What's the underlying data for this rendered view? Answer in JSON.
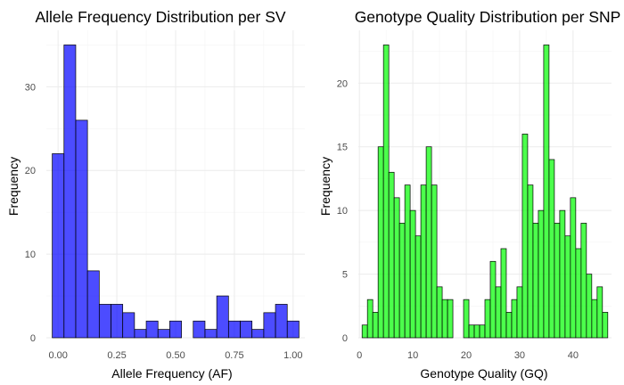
{
  "chart_data": [
    {
      "type": "bar",
      "title": "Allele Frequency Distribution per SV",
      "xlabel": "Allele Frequency (AF)",
      "ylabel": "Frequency",
      "bar_color": "#0000ff",
      "bar_opacity": 0.7,
      "bin_width": 0.05,
      "x": [
        0.0,
        0.05,
        0.1,
        0.15,
        0.2,
        0.25,
        0.3,
        0.35,
        0.4,
        0.45,
        0.5,
        0.55,
        0.6,
        0.65,
        0.7,
        0.75,
        0.8,
        0.85,
        0.9,
        0.95,
        1.0
      ],
      "values": [
        22,
        35,
        26,
        8,
        4,
        4,
        3,
        1,
        2,
        1,
        2,
        0,
        2,
        1,
        5,
        2,
        2,
        1,
        3,
        4,
        2
      ],
      "xlim": [
        -0.05,
        1.05
      ],
      "ylim": [
        0,
        36.75
      ],
      "xticks": [
        0.0,
        0.25,
        0.5,
        0.75,
        1.0
      ],
      "xtick_labels": [
        "0.00",
        "0.25",
        "0.50",
        "0.75",
        "1.00"
      ],
      "yticks": [
        0,
        10,
        20,
        30
      ],
      "ytick_labels": [
        "0",
        "10",
        "20",
        "30"
      ],
      "grid": true
    },
    {
      "type": "bar",
      "title": "Genotype Quality Distribution per SNP",
      "xlabel": "Genotype Quality (GQ)",
      "ylabel": "Frequency",
      "bar_color": "#00ff00",
      "bar_opacity": 0.7,
      "bin_width": 1,
      "x": [
        1,
        2,
        3,
        4,
        5,
        6,
        7,
        8,
        9,
        10,
        11,
        12,
        13,
        14,
        15,
        16,
        17,
        18,
        19,
        20,
        21,
        22,
        23,
        24,
        25,
        26,
        27,
        28,
        29,
        30,
        31,
        32,
        33,
        34,
        35,
        36,
        37,
        38,
        39,
        40,
        41,
        42,
        43,
        44,
        45,
        46
      ],
      "values": [
        1,
        3,
        2,
        15,
        23,
        13,
        11,
        9,
        12,
        10,
        8,
        12,
        15,
        12,
        4,
        3,
        3,
        0,
        0,
        3,
        1,
        1,
        1,
        3,
        6,
        4,
        7,
        2,
        3,
        4,
        16,
        12,
        9,
        10,
        23,
        14,
        9,
        10,
        8,
        11,
        7,
        9,
        5,
        3,
        4,
        2
      ],
      "xlim": [
        -0.2,
        47.2
      ],
      "ylim": [
        0,
        24.15
      ],
      "xticks": [
        0,
        10,
        20,
        30,
        40
      ],
      "xtick_labels": [
        "0",
        "10",
        "20",
        "30",
        "40"
      ],
      "yticks": [
        0,
        5,
        10,
        15,
        20
      ],
      "ytick_labels": [
        "0",
        "5",
        "10",
        "15",
        "20"
      ],
      "grid": true
    }
  ]
}
